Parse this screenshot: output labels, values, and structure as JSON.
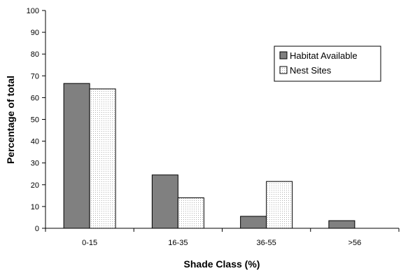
{
  "chart_data": {
    "type": "bar",
    "xlabel": "Shade Class (%)",
    "ylabel": "Percentage of total",
    "categories": [
      "0-15",
      "16-35",
      "36-55",
      ">56"
    ],
    "ylim": [
      0,
      100
    ],
    "yticks": [
      0,
      10,
      20,
      30,
      40,
      50,
      60,
      70,
      80,
      90,
      100
    ],
    "grid": false,
    "legend_position": "top-right",
    "series": [
      {
        "name": "Habitat Available",
        "values": [
          66.5,
          24.5,
          5.5,
          3.5
        ],
        "color": "#808080",
        "pattern": "solid"
      },
      {
        "name": "Nest Sites",
        "values": [
          64,
          14,
          21.5,
          0
        ],
        "color": "#ffffff",
        "pattern": "dotted"
      }
    ]
  }
}
